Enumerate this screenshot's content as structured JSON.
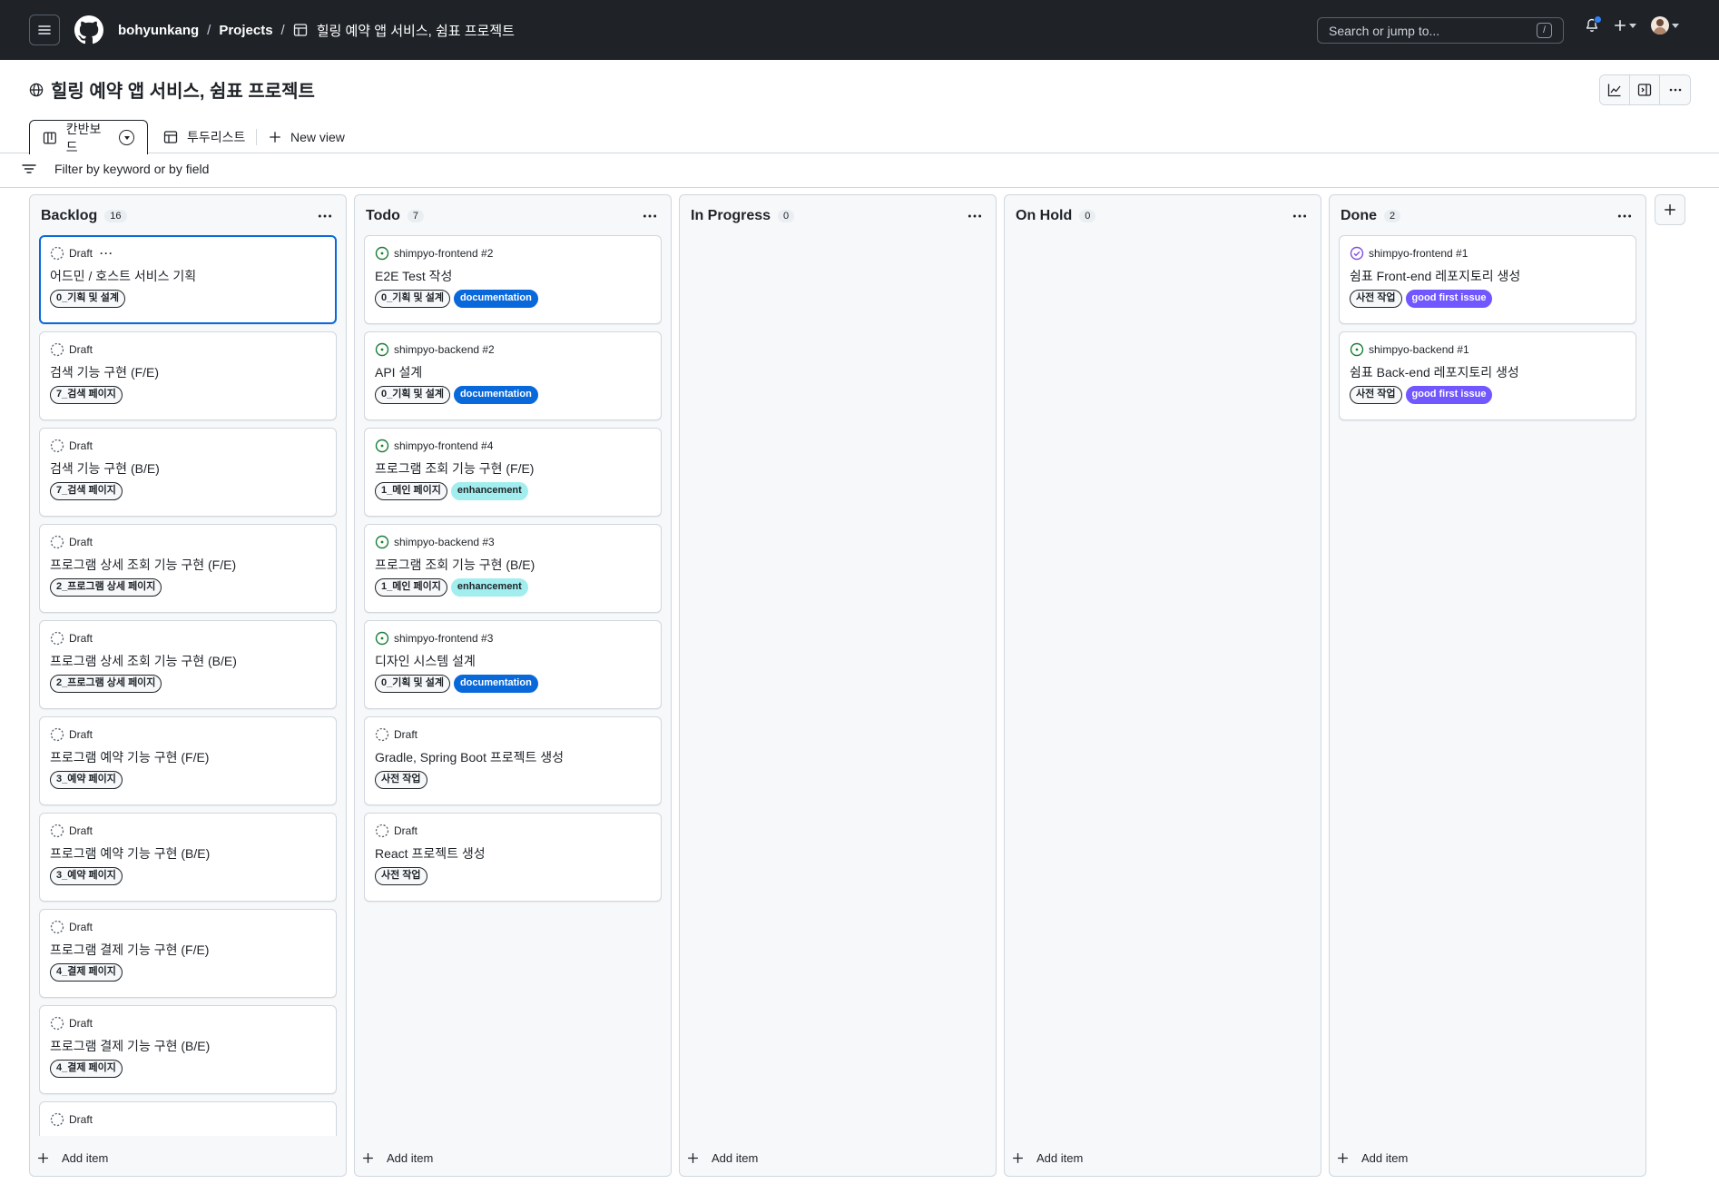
{
  "header": {
    "owner": "bohyunkang",
    "projects": "Projects",
    "separator": "/",
    "project_title": "힐링 예약 앱 서비스, 쉼표 프로젝트",
    "search_placeholder": "Search or jump to...",
    "search_shortcut": "/"
  },
  "page": {
    "title": "힐링 예약 앱 서비스, 쉼표 프로젝트"
  },
  "tabs": [
    {
      "label": "칸반보드",
      "icon": "board-icon",
      "active": true
    },
    {
      "label": "투두리스트",
      "icon": "table-icon",
      "active": false
    }
  ],
  "new_view_label": "New view",
  "filter_placeholder": "Filter by keyword or by field",
  "add_item_label": "Add item",
  "columns": [
    {
      "name": "Backlog",
      "count": "16",
      "cards": [
        {
          "meta": "Draft",
          "type": "draft",
          "title": "어드민 / 호스트 서비스 기획",
          "labels": [
            {
              "text": "0_기획 및 설계",
              "kind": "plain"
            }
          ],
          "focused": true,
          "more": "···"
        },
        {
          "meta": "Draft",
          "type": "draft",
          "title": "검색 기능 구현 (F/E)",
          "labels": [
            {
              "text": "7_검색 페이지",
              "kind": "plain"
            }
          ]
        },
        {
          "meta": "Draft",
          "type": "draft",
          "title": "검색 기능 구현 (B/E)",
          "labels": [
            {
              "text": "7_검색 페이지",
              "kind": "plain"
            }
          ]
        },
        {
          "meta": "Draft",
          "type": "draft",
          "title": "프로그램 상세 조회 기능 구현 (F/E)",
          "labels": [
            {
              "text": "2_프로그램 상세 페이지",
              "kind": "plain"
            }
          ]
        },
        {
          "meta": "Draft",
          "type": "draft",
          "title": "프로그램 상세 조회 기능 구현 (B/E)",
          "labels": [
            {
              "text": "2_프로그램 상세 페이지",
              "kind": "plain"
            }
          ]
        },
        {
          "meta": "Draft",
          "type": "draft",
          "title": "프로그램 예약 기능 구현 (F/E)",
          "labels": [
            {
              "text": "3_예약 페이지",
              "kind": "plain"
            }
          ]
        },
        {
          "meta": "Draft",
          "type": "draft",
          "title": "프로그램 예약 기능 구현 (B/E)",
          "labels": [
            {
              "text": "3_예약 페이지",
              "kind": "plain"
            }
          ]
        },
        {
          "meta": "Draft",
          "type": "draft",
          "title": "프로그램 결제 기능 구현 (F/E)",
          "labels": [
            {
              "text": "4_결제 페이지",
              "kind": "plain"
            }
          ]
        },
        {
          "meta": "Draft",
          "type": "draft",
          "title": "프로그램 결제 기능 구현 (B/E)",
          "labels": [
            {
              "text": "4_결제 페이지",
              "kind": "plain"
            }
          ]
        },
        {
          "meta": "Draft",
          "type": "draft",
          "title": "",
          "labels": []
        }
      ]
    },
    {
      "name": "Todo",
      "count": "7",
      "cards": [
        {
          "meta": "shimpyo-frontend #2",
          "type": "open",
          "title": "E2E Test 작성",
          "labels": [
            {
              "text": "0_기획 및 설계",
              "kind": "plain"
            },
            {
              "text": "documentation",
              "kind": "doc"
            }
          ]
        },
        {
          "meta": "shimpyo-backend #2",
          "type": "open",
          "title": "API 설계",
          "labels": [
            {
              "text": "0_기획 및 설계",
              "kind": "plain"
            },
            {
              "text": "documentation",
              "kind": "doc"
            }
          ]
        },
        {
          "meta": "shimpyo-frontend #4",
          "type": "open",
          "title": "프로그램 조회 기능 구현 (F/E)",
          "labels": [
            {
              "text": "1_메인 페이지",
              "kind": "plain"
            },
            {
              "text": "enhancement",
              "kind": "enh"
            }
          ]
        },
        {
          "meta": "shimpyo-backend #3",
          "type": "open",
          "title": "프로그램 조회 기능 구현 (B/E)",
          "labels": [
            {
              "text": "1_메인 페이지",
              "kind": "plain"
            },
            {
              "text": "enhancement",
              "kind": "enh"
            }
          ]
        },
        {
          "meta": "shimpyo-frontend #3",
          "type": "open",
          "title": "디자인 시스템 설계",
          "labels": [
            {
              "text": "0_기획 및 설계",
              "kind": "plain"
            },
            {
              "text": "documentation",
              "kind": "doc"
            }
          ]
        },
        {
          "meta": "Draft",
          "type": "draft",
          "title": "Gradle, Spring Boot 프로젝트 생성",
          "labels": [
            {
              "text": "사전 작업",
              "kind": "plain"
            }
          ]
        },
        {
          "meta": "Draft",
          "type": "draft",
          "title": "React 프로젝트 생성",
          "labels": [
            {
              "text": "사전 작업",
              "kind": "plain"
            }
          ]
        }
      ]
    },
    {
      "name": "In Progress",
      "count": "0",
      "cards": []
    },
    {
      "name": "On Hold",
      "count": "0",
      "cards": []
    },
    {
      "name": "Done",
      "count": "2",
      "cards": [
        {
          "meta": "shimpyo-frontend #1",
          "type": "closed",
          "title": "쉼표 Front-end 레포지토리 생성",
          "labels": [
            {
              "text": "사전 작업",
              "kind": "plain"
            },
            {
              "text": "good first issue",
              "kind": "gfi"
            }
          ]
        },
        {
          "meta": "shimpyo-backend #1",
          "type": "open",
          "title": "쉼표 Back-end 레포지토리 생성",
          "labels": [
            {
              "text": "사전 작업",
              "kind": "plain"
            },
            {
              "text": "good first issue",
              "kind": "gfi"
            }
          ]
        }
      ]
    }
  ],
  "colors": {
    "header_bg": "#1f2328",
    "accent_blue": "#0969da",
    "open_green": "#1a7f37",
    "done_purple": "#8250df",
    "documentation": "#0969da",
    "enhancement": "#a2eeef",
    "good_first_issue": "#7057ff"
  }
}
